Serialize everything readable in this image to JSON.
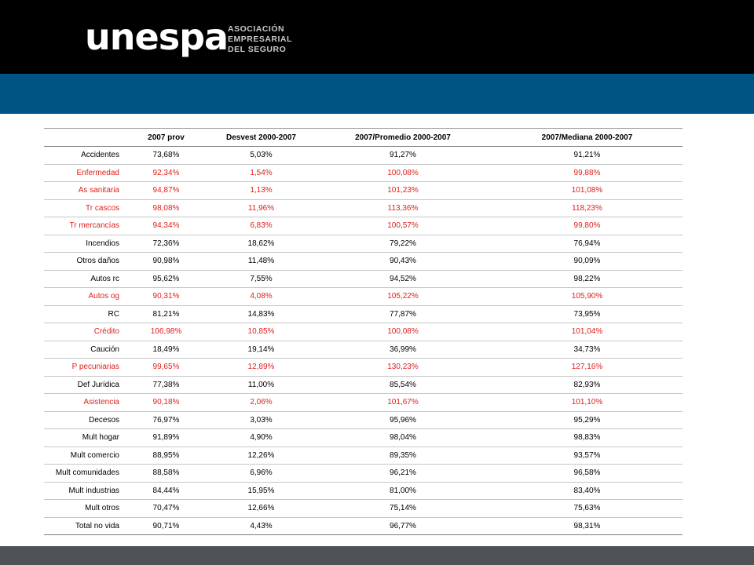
{
  "header": {
    "logo_text": "unespa",
    "subtitle_lines": [
      "ASOCIACIÓN",
      "EMPRESARIAL",
      "DEL SEGURO"
    ]
  },
  "colors": {
    "highlight_text": "#e0201b",
    "header_band": "#000000",
    "accent_band": "#005483",
    "footer_band": "#4e5358"
  },
  "table": {
    "columns": [
      "",
      "2007 prov",
      "Desvest 2000-2007",
      "2007/Promedio 2000-2007",
      "2007/Mediana 2000-2007"
    ],
    "rows": [
      {
        "label": "Accidentes",
        "values": [
          "73,68%",
          "5,03%",
          "91,27%",
          "91,21%"
        ],
        "highlight": false
      },
      {
        "label": "Enfermedad",
        "values": [
          "92,34%",
          "1,54%",
          "100,08%",
          "99,88%"
        ],
        "highlight": true
      },
      {
        "label": "As sanitaria",
        "values": [
          "94,87%",
          "1,13%",
          "101,23%",
          "101,08%"
        ],
        "highlight": true
      },
      {
        "label": "Tr cascos",
        "values": [
          "98,08%",
          "11,96%",
          "113,36%",
          "118,23%"
        ],
        "highlight": true
      },
      {
        "label": "Tr mercancías",
        "values": [
          "94,34%",
          "6,83%",
          "100,57%",
          "99,80%"
        ],
        "highlight": true
      },
      {
        "label": "Incendios",
        "values": [
          "72,36%",
          "18,62%",
          "79,22%",
          "76,94%"
        ],
        "highlight": false
      },
      {
        "label": "Otros daños",
        "values": [
          "90,98%",
          "11,48%",
          "90,43%",
          "90,09%"
        ],
        "highlight": false
      },
      {
        "label": "Autos rc",
        "values": [
          "95,62%",
          "7,55%",
          "94,52%",
          "98,22%"
        ],
        "highlight": false
      },
      {
        "label": "Autos og",
        "values": [
          "90,31%",
          "4,08%",
          "105,22%",
          "105,90%"
        ],
        "highlight": true
      },
      {
        "label": "RC",
        "values": [
          "81,21%",
          "14,83%",
          "77,87%",
          "73,95%"
        ],
        "highlight": false
      },
      {
        "label": "Crédito",
        "values": [
          "106,98%",
          "10,85%",
          "100,08%",
          "101,04%"
        ],
        "highlight": true
      },
      {
        "label": "Caución",
        "values": [
          "18,49%",
          "19,14%",
          "36,99%",
          "34,73%"
        ],
        "highlight": false
      },
      {
        "label": "P pecuniarias",
        "values": [
          "99,65%",
          "12,89%",
          "130,23%",
          "127,16%"
        ],
        "highlight": true
      },
      {
        "label": "Def Jurídica",
        "values": [
          "77,38%",
          "11,00%",
          "85,54%",
          "82,93%"
        ],
        "highlight": false
      },
      {
        "label": "Asistencia",
        "values": [
          "90,18%",
          "2,06%",
          "101,67%",
          "101,10%"
        ],
        "highlight": true
      },
      {
        "label": "Decesos",
        "values": [
          "76,97%",
          "3,03%",
          "95,96%",
          "95,29%"
        ],
        "highlight": false
      },
      {
        "label": "Mult hogar",
        "values": [
          "91,89%",
          "4,90%",
          "98,04%",
          "98,83%"
        ],
        "highlight": false
      },
      {
        "label": "Mult comercio",
        "values": [
          "88,95%",
          "12,26%",
          "89,35%",
          "93,57%"
        ],
        "highlight": false
      },
      {
        "label": "Mult comunidades",
        "values": [
          "88,58%",
          "6,96%",
          "96,21%",
          "96,58%"
        ],
        "highlight": false
      },
      {
        "label": "Mult industrias",
        "values": [
          "84,44%",
          "15,95%",
          "81,00%",
          "83,40%"
        ],
        "highlight": false
      },
      {
        "label": "Mult otros",
        "values": [
          "70,47%",
          "12,66%",
          "75,14%",
          "75,63%"
        ],
        "highlight": false
      },
      {
        "label": "Total no vida",
        "values": [
          "90,71%",
          "4,43%",
          "96,77%",
          "98,31%"
        ],
        "highlight": false
      }
    ]
  }
}
